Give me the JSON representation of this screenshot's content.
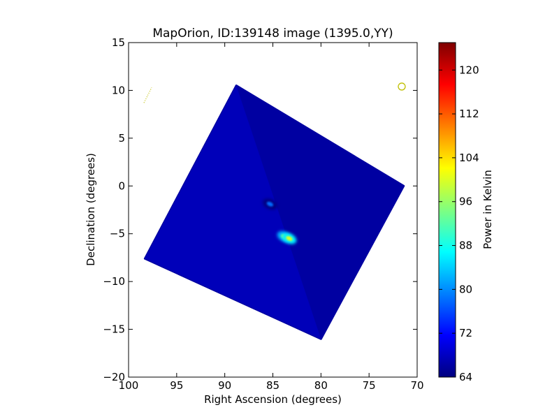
{
  "chart_data": {
    "type": "heatmap",
    "title": "MapOrion, ID:139148 image (1395.0,YY)",
    "xlabel": "Right Ascension (degrees)",
    "ylabel": "Declination (degrees)",
    "xlim": [
      100,
      70
    ],
    "ylim": [
      -20,
      15
    ],
    "xticks": [
      "100",
      "95",
      "90",
      "85",
      "80",
      "75",
      "70"
    ],
    "yticks": [
      "15",
      "10",
      "5",
      "0",
      "−5",
      "−10",
      "−15",
      "−20"
    ],
    "xtick_values": [
      100,
      95,
      90,
      85,
      80,
      75,
      70
    ],
    "ytick_values": [
      15,
      10,
      5,
      0,
      -5,
      -10,
      -15,
      -20
    ],
    "map_footprint_corners": [
      [
        88.8,
        10.5
      ],
      [
        71.4,
        0.0
      ],
      [
        80.0,
        -16.0
      ],
      [
        98.3,
        -7.6
      ]
    ],
    "background_level_k": 66,
    "sources": [
      {
        "ra": 85.3,
        "dec": -1.9,
        "peak_k": 78
      },
      {
        "ra": 83.8,
        "dec": -5.3,
        "peak_k": 96
      },
      {
        "ra": 83.3,
        "dec": -5.5,
        "peak_k": 100
      }
    ],
    "overlay_markers": [
      {
        "shape": "circle",
        "ra": 71.6,
        "dec": 10.4,
        "color": "#bfbf00"
      },
      {
        "shape": "dotted-line",
        "from": [
          98.4,
          8.7
        ],
        "to": [
          97.6,
          10.3
        ],
        "color": "#bfbf00"
      }
    ],
    "colorbar": {
      "label": "Power in Kelvin",
      "range": [
        64,
        125
      ],
      "ticks": [
        "64",
        "72",
        "80",
        "88",
        "96",
        "104",
        "112",
        "120"
      ],
      "tick_values": [
        64,
        72,
        80,
        88,
        96,
        104,
        112,
        120
      ],
      "colormap": "jet"
    }
  }
}
